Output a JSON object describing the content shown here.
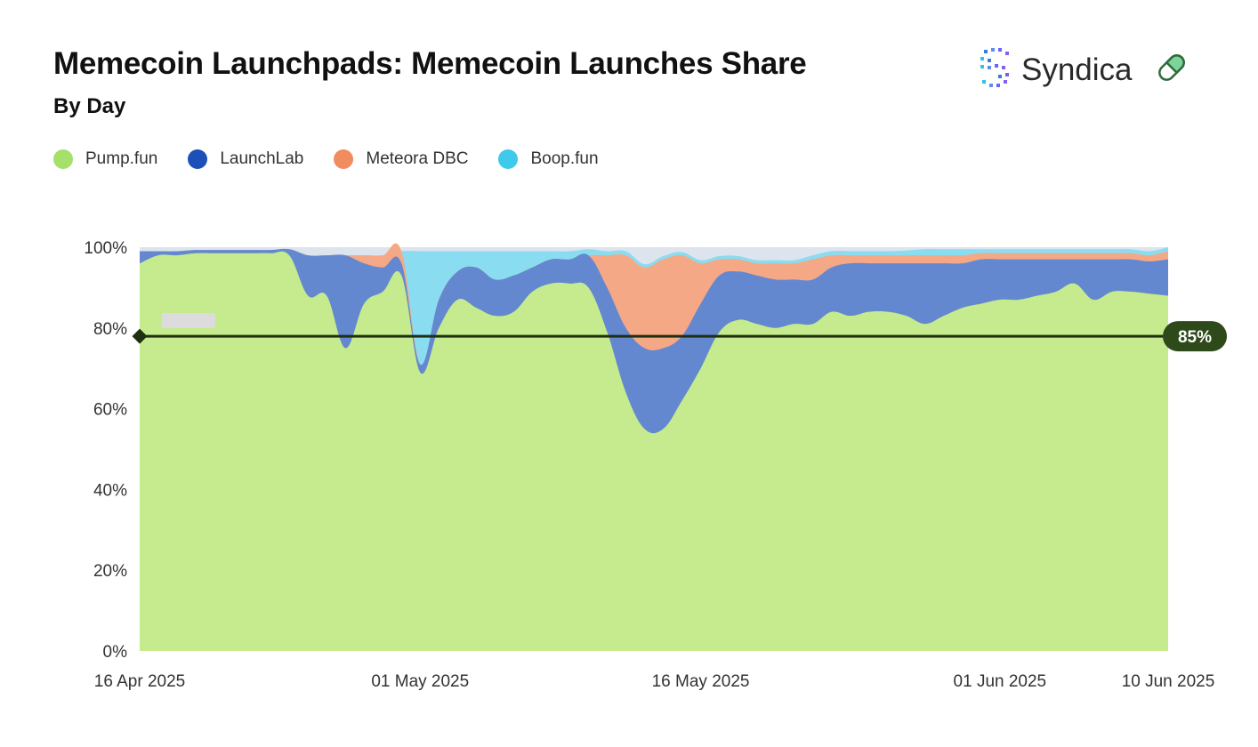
{
  "header": {
    "title": "Memecoin Launchpads: Memecoin Launches Share",
    "subtitle": "By Day"
  },
  "brand": {
    "name": "Syndica",
    "logo_icon": "syndica-dots-icon",
    "pill_icon": "pill-icon"
  },
  "colors": {
    "pump": "#c5eb8e",
    "launchlab": "#6488cf",
    "meteora": "#f5a885",
    "boop": "#8adcf0",
    "top_gap": "#dde4ee",
    "reference_line": "#1e2f12",
    "reference_badge": "#2e4a1a",
    "legend_pump": "#a5e06a",
    "legend_launchlab": "#1c4fb8",
    "legend_meteora": "#f08c5e",
    "legend_boop": "#3fc9ea"
  },
  "chart_data": {
    "type": "area",
    "stacked": true,
    "title": "Memecoin Launchpads: Memecoin Launches Share",
    "subtitle": "By Day",
    "xlabel": "",
    "ylabel": "",
    "ylim": [
      0,
      100
    ],
    "y_ticks": [
      "0%",
      "20%",
      "40%",
      "60%",
      "80%",
      "100%"
    ],
    "x_ticks": [
      "16 Apr 2025",
      "01 May 2025",
      "16 May 2025",
      "01 Jun 2025",
      "10 Jun 2025"
    ],
    "x": [
      "2025-04-16",
      "2025-04-17",
      "2025-04-18",
      "2025-04-19",
      "2025-04-20",
      "2025-04-21",
      "2025-04-22",
      "2025-04-23",
      "2025-04-24",
      "2025-04-25",
      "2025-04-26",
      "2025-04-27",
      "2025-04-28",
      "2025-04-29",
      "2025-04-30",
      "2025-05-01",
      "2025-05-02",
      "2025-05-03",
      "2025-05-04",
      "2025-05-05",
      "2025-05-06",
      "2025-05-07",
      "2025-05-08",
      "2025-05-09",
      "2025-05-10",
      "2025-05-11",
      "2025-05-12",
      "2025-05-13",
      "2025-05-14",
      "2025-05-15",
      "2025-05-16",
      "2025-05-17",
      "2025-05-18",
      "2025-05-19",
      "2025-05-20",
      "2025-05-21",
      "2025-05-22",
      "2025-05-23",
      "2025-05-24",
      "2025-05-25",
      "2025-05-26",
      "2025-05-27",
      "2025-05-28",
      "2025-05-29",
      "2025-05-30",
      "2025-05-31",
      "2025-06-01",
      "2025-06-02",
      "2025-06-03",
      "2025-06-04",
      "2025-06-05",
      "2025-06-06",
      "2025-06-07",
      "2025-06-08",
      "2025-06-09",
      "2025-06-10"
    ],
    "series": [
      {
        "name": "Pump.fun",
        "color_key": "pump",
        "values": [
          96,
          98,
          98,
          98.5,
          98.5,
          98.5,
          98.5,
          98.5,
          98,
          88,
          88,
          75,
          86,
          89,
          93,
          69,
          80,
          87,
          85,
          83,
          84,
          89,
          91,
          91,
          90,
          79,
          64,
          55,
          55,
          62,
          70,
          79,
          82,
          81,
          80,
          81,
          81,
          84,
          83,
          84,
          84,
          83,
          81,
          83,
          85,
          86,
          87,
          87,
          88,
          89,
          91,
          87,
          89,
          89,
          88.5,
          88
        ]
      },
      {
        "name": "LaunchLab",
        "color_key": "launchlab",
        "values": [
          3,
          1,
          1,
          0.8,
          0.8,
          0.8,
          0.8,
          0.8,
          1.5,
          10,
          10,
          23,
          10,
          6,
          3,
          2,
          7,
          7,
          10,
          9,
          9,
          6,
          6,
          6,
          8,
          11,
          16,
          20,
          20,
          16,
          16,
          14,
          12,
          12,
          12,
          11,
          11,
          11,
          13,
          12,
          12,
          13,
          15,
          13,
          11,
          11,
          10,
          10,
          9,
          8,
          6,
          10,
          8,
          8,
          8,
          9
        ]
      },
      {
        "name": "Meteora DBC",
        "color_key": "meteora",
        "values": [
          0,
          0,
          0,
          0,
          0,
          0,
          0,
          0,
          0,
          0,
          0,
          0,
          2,
          3,
          3,
          0,
          0,
          0,
          0,
          0,
          0,
          0,
          0,
          0,
          0,
          8,
          18,
          20,
          22,
          20,
          10,
          4,
          3,
          3,
          4,
          4,
          5,
          3,
          2,
          2,
          2,
          2,
          2,
          2,
          2,
          1.5,
          1.5,
          1.5,
          1.5,
          1.5,
          1.5,
          1.5,
          1.5,
          1.5,
          1.5,
          2
        ]
      },
      {
        "name": "Boop.fun",
        "color_key": "boop",
        "values": [
          0,
          0,
          0,
          0,
          0,
          0,
          0,
          0,
          0,
          0,
          0,
          0,
          0,
          0,
          0,
          28,
          12,
          5,
          4,
          7,
          6,
          4,
          2,
          2,
          1.5,
          1,
          1,
          0.8,
          0.8,
          0.8,
          0.8,
          0.8,
          0.8,
          0.8,
          0.8,
          0.8,
          1,
          1,
          1,
          1,
          1,
          1.2,
          1.5,
          1.5,
          1.5,
          1,
          1,
          1,
          1,
          1,
          1,
          1,
          1,
          1,
          1,
          1
        ]
      }
    ],
    "reference_line": {
      "value": 85,
      "label": "85%"
    },
    "legend_position": "top-left",
    "grid": false
  }
}
